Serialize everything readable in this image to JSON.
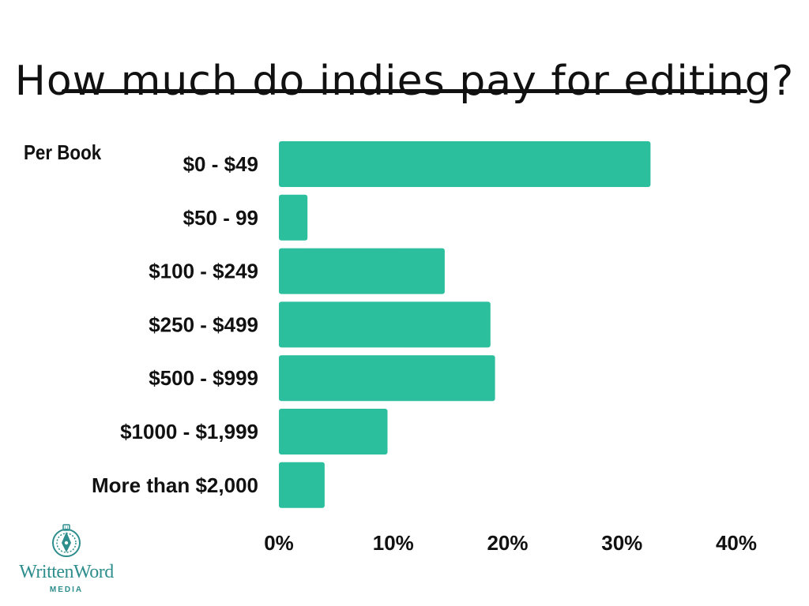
{
  "chart_data": {
    "type": "bar",
    "orientation": "horizontal",
    "title": "How much do indies pay for editing?",
    "group_label": "Per Book",
    "categories": [
      "$0 - $49",
      "$50 - 99",
      "$100 - $249",
      "$250 - $499",
      "$500 - $999",
      "$1000 - $1,999",
      "More than $2,000"
    ],
    "values": [
      32.5,
      2.5,
      14.5,
      18.5,
      18.9,
      9.5,
      4.0
    ],
    "xlim": [
      0,
      40
    ],
    "xticks": [
      0,
      10,
      20,
      30,
      40
    ],
    "xtick_labels": [
      "0%",
      "10%",
      "20%",
      "30%",
      "40%"
    ],
    "xlabel": "",
    "ylabel": "",
    "grid": false,
    "bar_color": "#2bbf9e"
  },
  "branding": {
    "logo_text": "WrittenWord",
    "logo_subtext": "MEDIA",
    "logo_color": "#2e8d8d",
    "logo_icon": "pen-nib-icon"
  }
}
